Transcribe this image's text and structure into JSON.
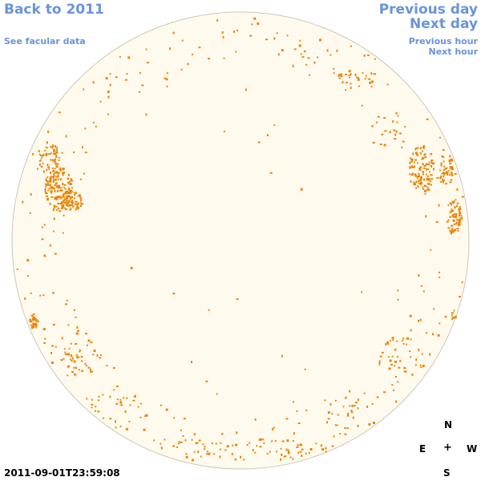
{
  "nav": {
    "back_label": "Back to 2011",
    "facular_label": "See facular data",
    "previous_day_label": "Previous day",
    "next_day_label": "Next day",
    "previous_hour_label": "Previous hour",
    "next_hour_label": "Next hour"
  },
  "compass": {
    "north": "N",
    "east": "E",
    "center": "+",
    "west": "W",
    "south": "S"
  },
  "timestamp": "2011-09-01T23:59:08",
  "colors": {
    "link": "#6a94d8",
    "disk_fill": "#fffaee",
    "disk_edge": "#cfc7b5",
    "facula": "#e8870c"
  }
}
